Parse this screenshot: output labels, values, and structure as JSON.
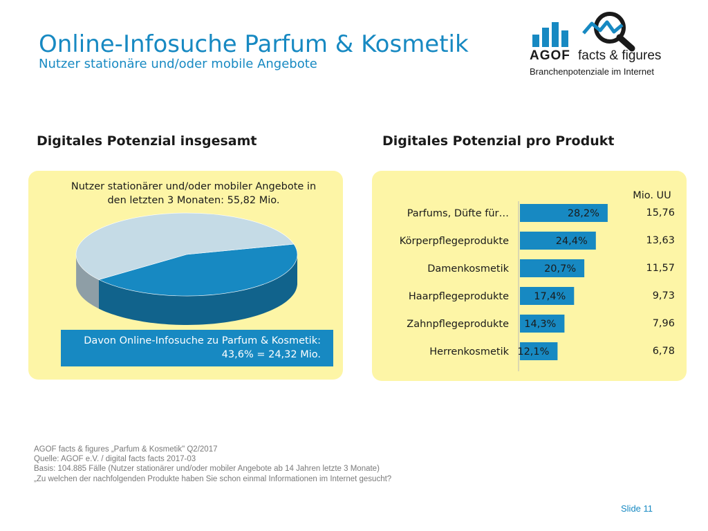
{
  "header": {
    "title": "Online-Infosuche Parfum & Kosmetik",
    "subtitle": "Nutzer stationäre und/oder mobile Angebote"
  },
  "logo": {
    "brand": "AGOF",
    "product": "facts & figures",
    "tagline": "Branchenpotenziale im Internet",
    "icons": [
      "bar-chart-icon",
      "magnifier-icon"
    ],
    "color": "#1789c2"
  },
  "left_section": {
    "heading": "Digitales Potenzial insgesamt",
    "total_text": "Nutzer stationärer und/oder mobiler Angebote in den letzten 3 Monaten: 55,82 Mio.",
    "subset_text": "Davon Online-Infosuche zu Parfum & Kosmetik: 43,6% = 24,32 Mio."
  },
  "right_section": {
    "heading": "Digitales Potenzial pro Produkt",
    "unit_header": "Mio. UU"
  },
  "chart_data": [
    {
      "type": "pie",
      "style": "3d",
      "slices": [
        {
          "label": "Online-Infosuche zu Parfum & Kosmetik",
          "value": 43.6,
          "color": "#1789c2"
        },
        {
          "label": "",
          "value": 56.4,
          "color": "#c5dbe6"
        }
      ]
    },
    {
      "type": "bar",
      "orientation": "horizontal",
      "categories": [
        "Parfums, Düfte für…",
        "Körperpflegeprodukte",
        "Damenkosmetik",
        "Haarpflegeprodukte",
        "Zahnpflegeprodukte",
        "Herrenkosmetik"
      ],
      "values": [
        28.2,
        24.4,
        20.7,
        17.4,
        14.3,
        12.1
      ],
      "value_labels": [
        "28,2%",
        "24,4%",
        "20,7%",
        "17,4%",
        "14,3%",
        "12,1%"
      ],
      "secondary_values": [
        15.76,
        13.63,
        11.57,
        9.73,
        7.96,
        6.78
      ],
      "secondary_labels": [
        "15,76",
        "13,63",
        "11,57",
        "9,73",
        "7,96",
        "6,78"
      ],
      "secondary_header": "Mio. UU",
      "xlim": [
        0,
        30
      ],
      "grid": false,
      "bar_color": "#1789c2"
    }
  ],
  "footer": {
    "notes": [
      "AGOF facts & figures „Parfum & Kosmetik\" Q2/2017",
      "Quelle: AGOF e.V. / digital facts facts 2017-03",
      "Basis: 104.885 Fälle (Nutzer stationärer und/oder mobiler Angebote ab 14 Jahren letzte 3 Monate)",
      "„Zu welchen der nachfolgenden Produkte haben Sie schon einmal Informationen im Internet gesucht?"
    ],
    "slide_label": "Slide 11"
  }
}
